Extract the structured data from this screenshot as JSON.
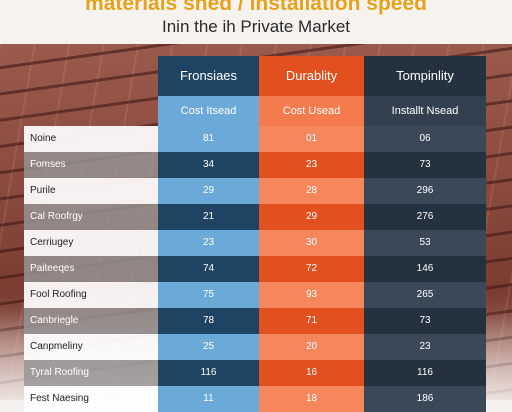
{
  "title": "materials shed / Installation speed",
  "subtitle": "Inin the ih Private Market",
  "colors": {
    "title": "#e7a21c",
    "col1_dark": "#1f4463",
    "col1_light": "#6aa9d8",
    "col2_dark": "#e3501f",
    "col2_light": "#f6865c",
    "col3_dark": "#24313f",
    "col3_light": "#3b4858"
  },
  "chart_data": {
    "type": "table",
    "columns": [
      "Fronsiaes",
      "Durablity",
      "Tompinlity"
    ],
    "subheaders": [
      "Cost Itsead",
      "Cost Usead",
      "Installt Nsead"
    ],
    "rows": [
      {
        "label": "Noine",
        "values": [
          "81",
          "01",
          "06"
        ]
      },
      {
        "label": "Fomses",
        "values": [
          "34",
          "23",
          "73"
        ]
      },
      {
        "label": "Purile",
        "values": [
          "29",
          "28",
          "296"
        ]
      },
      {
        "label": "Cal Roofrgy",
        "values": [
          "21",
          "29",
          "276"
        ]
      },
      {
        "label": "Cerriugey",
        "values": [
          "23",
          "30",
          "53"
        ]
      },
      {
        "label": "Paiteeqes",
        "values": [
          "74",
          "72",
          "146"
        ]
      },
      {
        "label": "Fool Roofing",
        "values": [
          "75",
          "93",
          "265"
        ]
      },
      {
        "label": "Canbriegle",
        "values": [
          "78",
          "71",
          "73"
        ]
      },
      {
        "label": "Canpmeliny",
        "values": [
          "25",
          "20",
          "23"
        ]
      },
      {
        "label": "Tyral Roofing",
        "values": [
          "116",
          "16",
          "116"
        ]
      },
      {
        "label": "Fest Naesing",
        "values": [
          "11",
          "18",
          "186"
        ]
      }
    ]
  }
}
